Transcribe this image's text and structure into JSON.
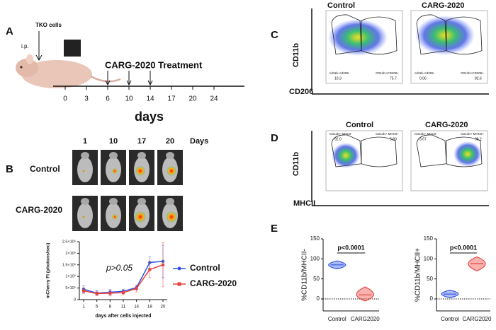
{
  "panel_a": {
    "label": "A",
    "cells": "TKO cells",
    "route": "i.p.",
    "treatment": "CARG-2020 Treatment",
    "timeline_ticks": [
      "0",
      "3",
      "6",
      "10",
      "14",
      "17",
      "20",
      "24"
    ],
    "axis_label": "days"
  },
  "panel_b": {
    "label": "B",
    "days": [
      "1",
      "10",
      "17",
      "20"
    ],
    "days_label": "Days",
    "rows": [
      "Control",
      "CARG-2020"
    ]
  },
  "panel_c": {
    "label": "C",
    "columns": [
      "Control",
      "CARG-2020"
    ],
    "y_label": "CD11b",
    "x_label": "CD206",
    "gates": [
      {
        "left_name": "cd11b+cd206-",
        "left_value": "10.3",
        "right_name": "CD11b+CD206+",
        "right_value": "75.7"
      },
      {
        "left_name": "cd11b+cd206-",
        "left_value": "0.06",
        "right_name": "CD11b+CD206+",
        "right_value": "82.6"
      }
    ]
  },
  "panel_d": {
    "label": "D",
    "columns": [
      "Control",
      "CARG-2020"
    ],
    "y_label": "CD11b",
    "x_label": "MHCII",
    "gates": [
      {
        "left_name": "CD11b+ MHCII-",
        "left_value": "92.0",
        "right_name": "CD11b+ MHCII+",
        "right_value": "5.80"
      },
      {
        "left_name": "CD11b+ MHCII-",
        "left_value": "3.67",
        "right_name": "CD11b+ MHCII+",
        "right_value": "98.2"
      }
    ]
  },
  "panel_e": {
    "label": "E"
  },
  "chart_data": [
    {
      "type": "line",
      "x_label": "days after cells injected",
      "y_label": "mCherry FI (photons/sec)",
      "categories": [
        "1",
        "5",
        "8",
        "11",
        "14",
        "18",
        "20"
      ],
      "series": [
        {
          "name": "Control",
          "color": "#2f55e6",
          "values": [
            450000,
            280000,
            320000,
            360000,
            520000,
            1600000,
            1650000
          ],
          "errors": [
            150000,
            100000,
            110000,
            90000,
            110000,
            250000,
            700000
          ]
        },
        {
          "name": "CARG-2020",
          "color": "#e8413a",
          "values": [
            380000,
            260000,
            280000,
            300000,
            480000,
            1300000,
            1500000
          ],
          "errors": [
            110000,
            80000,
            120000,
            100000,
            150000,
            350000,
            950000
          ]
        }
      ],
      "ylim": [
        0,
        2500000
      ],
      "yticks": [
        0,
        {
          "value": 500000,
          "label": "5×10⁵"
        },
        {
          "value": 1000000,
          "label": "1×10⁶"
        },
        {
          "value": 1500000,
          "label": "1.5×10⁶"
        },
        {
          "value": 2000000,
          "label": "2×10⁶"
        },
        {
          "value": 2500000,
          "label": "2.5×10⁶"
        }
      ],
      "annotation": "p>0.05"
    },
    {
      "type": "violin",
      "y_label": "%CD11b/MHCII-",
      "categories": [
        "Control",
        "CARG2020"
      ],
      "colors": [
        "#2f55e6",
        "#e8413a"
      ],
      "values": [
        85,
        10
      ],
      "mins": [
        75,
        -5
      ],
      "maxs": [
        95,
        30
      ],
      "ylim": [
        -30,
        150
      ],
      "yticks": [
        0,
        50,
        100,
        150
      ],
      "reference_line": 0,
      "annotation": "p<0.0001"
    },
    {
      "type": "violin",
      "y_label": "%CD11b/MHCII+",
      "categories": [
        "Control",
        "CARG2020"
      ],
      "colors": [
        "#2f55e6",
        "#e8413a"
      ],
      "values": [
        12,
        88
      ],
      "mins": [
        3,
        70
      ],
      "maxs": [
        22,
        105
      ],
      "ylim": [
        -30,
        150
      ],
      "yticks": [
        0,
        50,
        100,
        150
      ],
      "reference_line": 0,
      "annotation": "p<0.0001"
    }
  ]
}
